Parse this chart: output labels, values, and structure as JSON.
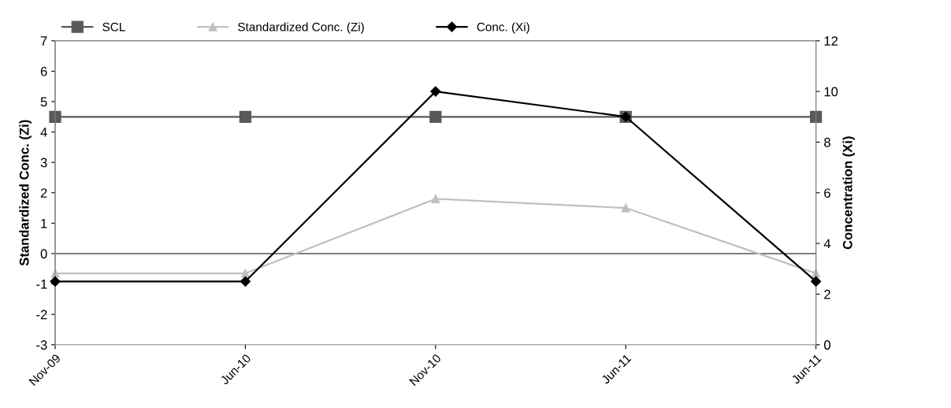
{
  "chart_data": {
    "type": "line",
    "categories": [
      "Nov-09",
      "Jun-10",
      "Nov-10",
      "Jun-11",
      "Jun-11"
    ],
    "series": [
      {
        "name": "SCL",
        "color": "#595959",
        "marker": "square",
        "values": [
          4.5,
          4.5,
          4.5,
          4.5,
          4.5
        ]
      },
      {
        "name": "Standardized Conc. (Zi)",
        "color": "#c0c0c0",
        "marker": "triangle",
        "values": [
          -0.65,
          -0.65,
          1.8,
          1.5,
          -0.65
        ]
      },
      {
        "name": "Conc. (Xi)",
        "color": "#000000",
        "marker": "diamond",
        "axis": "y2",
        "values": [
          2.5,
          2.5,
          10,
          9,
          2.5
        ]
      }
    ],
    "ylabel": "Standardized Conc. (Zi)",
    "y2label": "Concentration (Xi)",
    "ylim": [
      -3,
      7
    ],
    "yticks": [
      -3,
      -2,
      -1,
      0,
      1,
      2,
      3,
      4,
      5,
      6,
      7
    ],
    "y2lim": [
      0,
      12
    ],
    "y2ticks": [
      0,
      2,
      4,
      6,
      8,
      10,
      12
    ],
    "ref_lines": [
      {
        "axis": "y",
        "value": 0,
        "color": "#000000"
      }
    ],
    "grid": false,
    "legend": "top",
    "line_style": "solid"
  }
}
